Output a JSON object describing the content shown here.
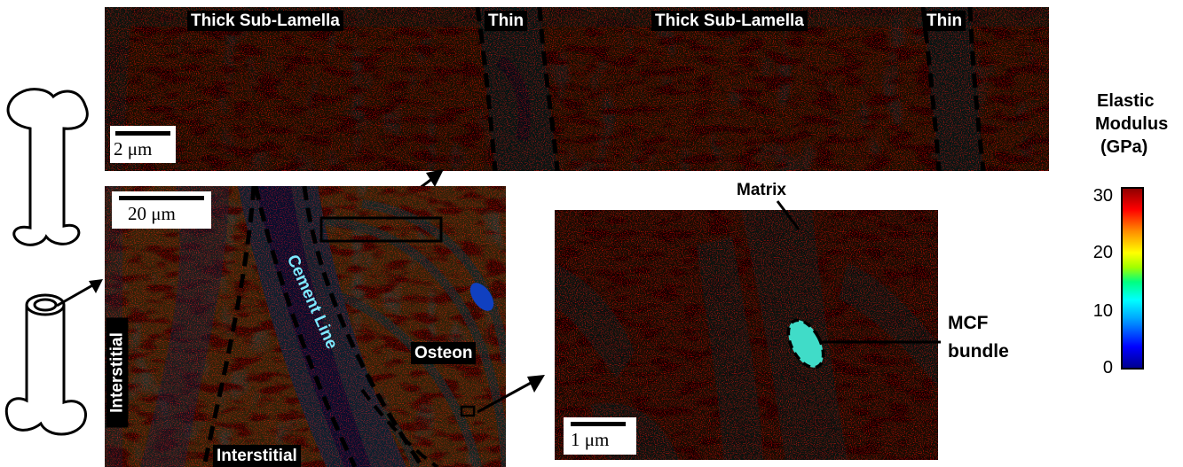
{
  "colorbar": {
    "title": [
      "Elastic",
      "Modulus",
      "(GPa)"
    ],
    "ticks": [
      "30",
      "20",
      "10",
      "0"
    ],
    "range": [
      0,
      30
    ],
    "stops": [
      "#00008b",
      "#0000ff",
      "#00a8ff",
      "#00ffff",
      "#00ff80",
      "#a0ff00",
      "#ffff00",
      "#ff8c00",
      "#ff0000",
      "#8b0000"
    ]
  },
  "top_panel": {
    "labels": {
      "thick_1": "Thick Sub-Lamella",
      "thin_1": "Thin",
      "thick_2": "Thick Sub-Lamella",
      "thin_2": "Thin"
    },
    "scale": "2 μm"
  },
  "osteon_panel": {
    "scale": "20 μm",
    "labels": {
      "cement_line": "Cement Line",
      "osteon": "Osteon",
      "interstitial_left": "Interstitial",
      "interstitial_bottom": "Interstitial"
    }
  },
  "zoom_panel": {
    "scale": "1 μm",
    "labels": {
      "matrix": "Matrix",
      "mcf_bundle": [
        "MCF",
        "bundle"
      ]
    }
  }
}
